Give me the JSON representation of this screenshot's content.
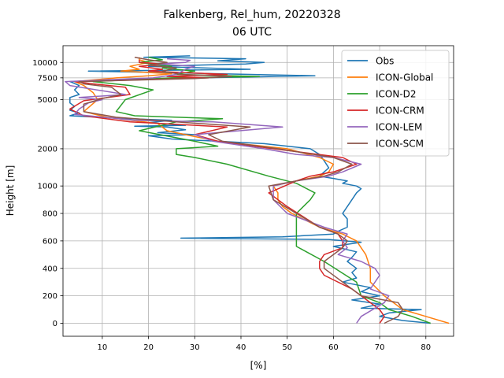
{
  "chart_data": {
    "type": "line",
    "title": "Falkenberg, Rel_hum, 20220328",
    "subtitle": "06 UTC",
    "xlabel": "[%]",
    "ylabel": "Height [m]",
    "xlim": [
      1.5,
      86
    ],
    "xticks": [
      10,
      20,
      30,
      40,
      50,
      60,
      70,
      80
    ],
    "y_ticks": [
      {
        "value": 0,
        "label": "0"
      },
      {
        "value": 200,
        "label": "200"
      },
      {
        "value": 400,
        "label": "400"
      },
      {
        "value": 600,
        "label": "600"
      },
      {
        "value": 800,
        "label": "800"
      },
      {
        "value": 1000,
        "label": "1000"
      },
      {
        "value": 2000,
        "label": "2000"
      },
      {
        "value": 5000,
        "label": "5000"
      },
      {
        "value": 7500,
        "label": "7500"
      },
      {
        "value": 10000,
        "label": "10000"
      }
    ],
    "y_scale_note": "linear below 1000 m, logarithmic above",
    "grid": true,
    "legend_position": "upper right",
    "series": [
      {
        "name": "Obs",
        "color": "#1f77b4",
        "points": [
          [
            81,
            0
          ],
          [
            75,
            20
          ],
          [
            70,
            50
          ],
          [
            72,
            75
          ],
          [
            79,
            100
          ],
          [
            66,
            110
          ],
          [
            70,
            140
          ],
          [
            64,
            170
          ],
          [
            70,
            200
          ],
          [
            66,
            230
          ],
          [
            68,
            260
          ],
          [
            62,
            300
          ],
          [
            65,
            330
          ],
          [
            64,
            370
          ],
          [
            65,
            400
          ],
          [
            63,
            450
          ],
          [
            64,
            480
          ],
          [
            65,
            520
          ],
          [
            60,
            560
          ],
          [
            66,
            590
          ],
          [
            59,
            610
          ],
          [
            27,
            620
          ],
          [
            49,
            630
          ],
          [
            60,
            650
          ],
          [
            61,
            670
          ],
          [
            63,
            700
          ],
          [
            63,
            730
          ],
          [
            63,
            760
          ],
          [
            62,
            800
          ],
          [
            63,
            850
          ],
          [
            64,
            900
          ],
          [
            65,
            950
          ],
          [
            66,
            980
          ],
          [
            65,
            1000
          ],
          [
            62,
            1050
          ],
          [
            63,
            1100
          ],
          [
            60,
            1150
          ],
          [
            57,
            1200
          ],
          [
            58,
            1300
          ],
          [
            59,
            1400
          ],
          [
            58,
            1600
          ],
          [
            57,
            1800
          ],
          [
            55,
            2000
          ],
          [
            50,
            2100
          ],
          [
            45,
            2200
          ],
          [
            35,
            2300
          ],
          [
            25,
            2400
          ],
          [
            20,
            2550
          ],
          [
            30,
            2600
          ],
          [
            22,
            2700
          ],
          [
            28,
            2850
          ],
          [
            24,
            3000
          ],
          [
            17,
            3050
          ],
          [
            28,
            3100
          ],
          [
            20,
            3250
          ],
          [
            25,
            3400
          ],
          [
            16,
            3500
          ],
          [
            3,
            3700
          ],
          [
            5,
            3900
          ],
          [
            3,
            4100
          ],
          [
            4,
            4400
          ],
          [
            3,
            4700
          ],
          [
            3,
            5200
          ],
          [
            5,
            5500
          ],
          [
            4,
            6000
          ],
          [
            5,
            6500
          ],
          [
            3,
            7000
          ],
          [
            15,
            7300
          ],
          [
            56,
            7800
          ],
          [
            35,
            8100
          ],
          [
            7,
            8500
          ],
          [
            42,
            8800
          ],
          [
            20,
            9300
          ],
          [
            41,
            9700
          ],
          [
            45,
            10000
          ],
          [
            35,
            10300
          ],
          [
            41,
            10700
          ],
          [
            19,
            11000
          ],
          [
            29,
            11300
          ]
        ]
      },
      {
        "name": "ICON-Global",
        "color": "#ff7f0e",
        "points": [
          [
            85,
            0
          ],
          [
            80,
            50
          ],
          [
            75,
            100
          ],
          [
            71,
            200
          ],
          [
            68,
            300
          ],
          [
            68,
            400
          ],
          [
            67,
            500
          ],
          [
            65,
            600
          ],
          [
            62,
            650
          ],
          [
            57,
            700
          ],
          [
            51,
            800
          ],
          [
            49,
            850
          ],
          [
            48,
            900
          ],
          [
            48,
            950
          ],
          [
            47,
            1000
          ],
          [
            52,
            1100
          ],
          [
            57,
            1200
          ],
          [
            59,
            1300
          ],
          [
            60,
            1500
          ],
          [
            57,
            1700
          ],
          [
            50,
            2000
          ],
          [
            35,
            2300
          ],
          [
            28,
            2600
          ],
          [
            24,
            2800
          ],
          [
            22,
            3200
          ],
          [
            11,
            3600
          ],
          [
            6,
            4000
          ],
          [
            9,
            5000
          ],
          [
            8,
            5700
          ],
          [
            6,
            6500
          ],
          [
            4,
            7000
          ],
          [
            13,
            7500
          ],
          [
            20,
            7800
          ],
          [
            25,
            8100
          ],
          [
            14,
            8500
          ],
          [
            18,
            8800
          ],
          [
            16,
            9300
          ],
          [
            20,
            10000
          ],
          [
            18,
            10500
          ],
          [
            18,
            11000
          ]
        ]
      },
      {
        "name": "ICON-D2",
        "color": "#2ca02c",
        "points": [
          [
            81,
            0
          ],
          [
            77,
            50
          ],
          [
            72,
            100
          ],
          [
            70,
            150
          ],
          [
            66,
            200
          ],
          [
            65,
            300
          ],
          [
            58,
            450
          ],
          [
            52,
            560
          ],
          [
            52,
            600
          ],
          [
            52,
            700
          ],
          [
            52,
            800
          ],
          [
            55,
            900
          ],
          [
            56,
            950
          ],
          [
            52,
            1050
          ],
          [
            46,
            1200
          ],
          [
            37,
            1500
          ],
          [
            30,
            1700
          ],
          [
            26,
            1800
          ],
          [
            26,
            2000
          ],
          [
            35,
            2100
          ],
          [
            30,
            2300
          ],
          [
            18,
            2800
          ],
          [
            26,
            3300
          ],
          [
            36,
            3500
          ],
          [
            17,
            3700
          ],
          [
            13,
            4000
          ],
          [
            15,
            5000
          ],
          [
            21,
            6000
          ],
          [
            16,
            6500
          ],
          [
            8,
            7000
          ],
          [
            25,
            7500
          ],
          [
            44,
            7700
          ],
          [
            26,
            8000
          ],
          [
            30,
            8500
          ],
          [
            23,
            9000
          ],
          [
            25,
            9300
          ],
          [
            18,
            10000
          ],
          [
            23,
            10500
          ],
          [
            20,
            11000
          ]
        ]
      },
      {
        "name": "ICON-CRM",
        "color": "#d62728",
        "points": [
          [
            70,
            0
          ],
          [
            71,
            50
          ],
          [
            70,
            100
          ],
          [
            66,
            200
          ],
          [
            64,
            250
          ],
          [
            58,
            350
          ],
          [
            57,
            400
          ],
          [
            57,
            450
          ],
          [
            58,
            500
          ],
          [
            62,
            550
          ],
          [
            62,
            600
          ],
          [
            61,
            650
          ],
          [
            57,
            700
          ],
          [
            50,
            850
          ],
          [
            46,
            950
          ],
          [
            52,
            1100
          ],
          [
            55,
            1200
          ],
          [
            60,
            1300
          ],
          [
            65,
            1500
          ],
          [
            62,
            1700
          ],
          [
            47,
            2000
          ],
          [
            35,
            2300
          ],
          [
            30,
            2600
          ],
          [
            37,
            3000
          ],
          [
            16,
            3300
          ],
          [
            6,
            3700
          ],
          [
            3,
            4200
          ],
          [
            6,
            4900
          ],
          [
            16,
            5500
          ],
          [
            15,
            6300
          ],
          [
            8,
            6700
          ],
          [
            4,
            7000
          ],
          [
            33,
            7500
          ],
          [
            24,
            7700
          ],
          [
            37,
            8000
          ],
          [
            20,
            8500
          ],
          [
            23,
            8800
          ],
          [
            18,
            9300
          ],
          [
            23,
            9700
          ],
          [
            18,
            10000
          ],
          [
            18,
            10500
          ]
        ]
      },
      {
        "name": "ICON-LEM",
        "color": "#9467bd",
        "points": [
          [
            65,
            0
          ],
          [
            66,
            50
          ],
          [
            71,
            150
          ],
          [
            72,
            200
          ],
          [
            68,
            250
          ],
          [
            69,
            300
          ],
          [
            70,
            350
          ],
          [
            69,
            400
          ],
          [
            66,
            450
          ],
          [
            61,
            500
          ],
          [
            63,
            550
          ],
          [
            62,
            600
          ],
          [
            63,
            650
          ],
          [
            58,
            700
          ],
          [
            50,
            800
          ],
          [
            47,
            900
          ],
          [
            47,
            1000
          ],
          [
            52,
            1100
          ],
          [
            59,
            1200
          ],
          [
            62,
            1300
          ],
          [
            66,
            1500
          ],
          [
            60,
            1700
          ],
          [
            52,
            1800
          ],
          [
            45,
            2000
          ],
          [
            34,
            2300
          ],
          [
            30,
            2600
          ],
          [
            49,
            3000
          ],
          [
            34,
            3300
          ],
          [
            17,
            3400
          ],
          [
            4,
            3800
          ],
          [
            5,
            4200
          ],
          [
            7,
            4700
          ],
          [
            10,
            5000
          ],
          [
            5,
            5200
          ],
          [
            15,
            5500
          ],
          [
            3,
            6500
          ],
          [
            2,
            7000
          ],
          [
            21,
            7500
          ],
          [
            26,
            8000
          ],
          [
            28,
            8800
          ],
          [
            30,
            9300
          ],
          [
            22,
            9700
          ],
          [
            28,
            10000
          ],
          [
            29,
            10400
          ],
          [
            24,
            10700
          ]
        ]
      },
      {
        "name": "ICON-SCM",
        "color": "#8c564b",
        "points": [
          [
            71,
            0
          ],
          [
            74,
            50
          ],
          [
            75,
            100
          ],
          [
            74,
            150
          ],
          [
            66,
            200
          ],
          [
            62,
            300
          ],
          [
            58,
            400
          ],
          [
            58,
            450
          ],
          [
            62,
            550
          ],
          [
            63,
            600
          ],
          [
            61,
            650
          ],
          [
            57,
            700
          ],
          [
            52,
            800
          ],
          [
            47,
            900
          ],
          [
            46,
            1000
          ],
          [
            52,
            1100
          ],
          [
            58,
            1200
          ],
          [
            61,
            1300
          ],
          [
            64,
            1500
          ],
          [
            60,
            1700
          ],
          [
            48,
            2000
          ],
          [
            36,
            2300
          ],
          [
            33,
            2600
          ],
          [
            42,
            3000
          ],
          [
            26,
            3300
          ],
          [
            13,
            3600
          ],
          [
            6,
            4000
          ],
          [
            6,
            4600
          ],
          [
            10,
            5100
          ],
          [
            14,
            5500
          ],
          [
            12,
            6300
          ],
          [
            6,
            6700
          ],
          [
            5,
            7000
          ],
          [
            30,
            7400
          ],
          [
            38,
            7700
          ],
          [
            27,
            8000
          ],
          [
            23,
            8500
          ],
          [
            26,
            9000
          ],
          [
            20,
            9500
          ],
          [
            24,
            10000
          ],
          [
            20,
            10500
          ],
          [
            17,
            11000
          ]
        ]
      }
    ]
  }
}
